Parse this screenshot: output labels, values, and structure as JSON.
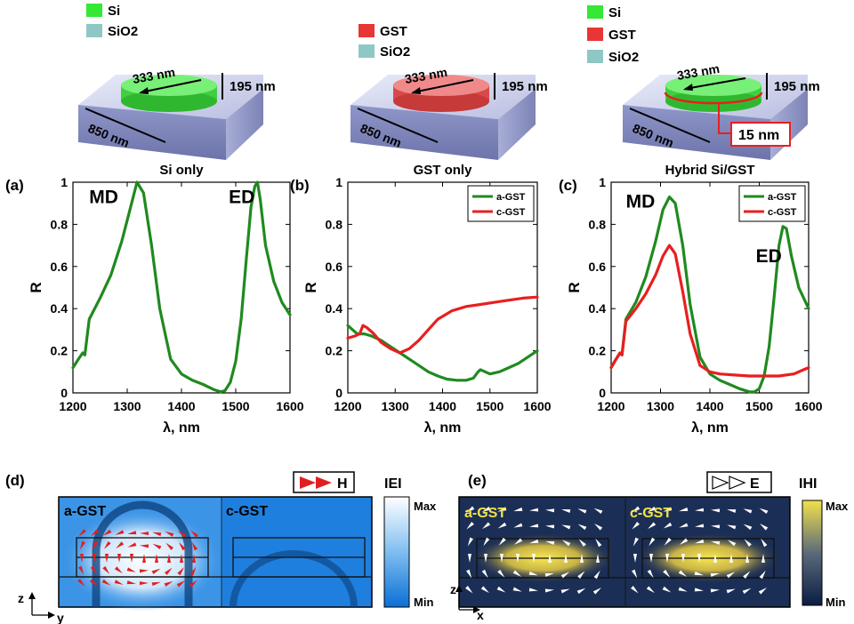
{
  "colors": {
    "si": "#35e835",
    "gst": "#e83535",
    "sio2": "#8fc7c7",
    "series_a": "#1f8a1f",
    "series_c": "#e81f1f",
    "ecolormap_min": "#0a6fd6",
    "ecolormap_max": "#ffffff",
    "hcolormap_min": "#0b1d44",
    "hcolormap_max": "#f2e14a"
  },
  "schematics": [
    {
      "legend": [
        "Si",
        "SiO2"
      ],
      "disk": "Si",
      "diameter_label": "333 nm",
      "height_label": "195 nm",
      "period_label": "850 nm"
    },
    {
      "legend": [
        "GST",
        "SiO2"
      ],
      "disk": "GST",
      "diameter_label": "333 nm",
      "height_label": "195 nm",
      "period_label": "850 nm"
    },
    {
      "legend": [
        "Si",
        "GST",
        "SiO2"
      ],
      "disk": "Hybrid",
      "diameter_label": "333 nm",
      "height_label": "195 nm",
      "period_label": "850 nm",
      "gst_thickness_label": "15 nm"
    }
  ],
  "chart_data": [
    {
      "type": "line",
      "panel": "(a)",
      "title": "Si only",
      "xlabel": "λ, nm",
      "ylabel": "R",
      "xlim": [
        1200,
        1600
      ],
      "ylim": [
        0,
        1
      ],
      "xticks": [
        1200,
        1300,
        1400,
        1500,
        1600
      ],
      "yticks": [
        0,
        0.2,
        0.4,
        0.6,
        0.8,
        1
      ],
      "annotations": [
        {
          "text": "MD",
          "x": 1230,
          "y": 0.9
        },
        {
          "text": "ED",
          "x": 1487,
          "y": 0.9
        }
      ],
      "legend": null,
      "series": [
        {
          "color_key": "series_a",
          "x": [
            1200,
            1210,
            1218,
            1222,
            1230,
            1250,
            1270,
            1290,
            1305,
            1318,
            1330,
            1345,
            1360,
            1380,
            1400,
            1420,
            1440,
            1460,
            1472,
            1480,
            1490,
            1500,
            1510,
            1520,
            1528,
            1535,
            1540,
            1545,
            1555,
            1570,
            1585,
            1600
          ],
          "y": [
            0.12,
            0.16,
            0.19,
            0.18,
            0.35,
            0.45,
            0.56,
            0.72,
            0.87,
            1.0,
            0.95,
            0.7,
            0.4,
            0.16,
            0.09,
            0.06,
            0.04,
            0.015,
            0.005,
            0.01,
            0.05,
            0.15,
            0.35,
            0.65,
            0.88,
            0.98,
            1.0,
            0.92,
            0.7,
            0.53,
            0.43,
            0.37
          ]
        }
      ]
    },
    {
      "type": "line",
      "panel": "(b)",
      "title": "GST only",
      "xlabel": "λ, nm",
      "ylabel": "R",
      "xlim": [
        1200,
        1600
      ],
      "ylim": [
        0,
        1
      ],
      "xticks": [
        1200,
        1300,
        1400,
        1500,
        1600
      ],
      "yticks": [
        0,
        0.2,
        0.4,
        0.6,
        0.8,
        1
      ],
      "annotations": [],
      "legend": {
        "position": "top-right"
      },
      "series": [
        {
          "name": "a-GST",
          "color_key": "series_a",
          "x": [
            1200,
            1210,
            1220,
            1235,
            1250,
            1270,
            1290,
            1310,
            1330,
            1350,
            1370,
            1390,
            1410,
            1430,
            1450,
            1465,
            1475,
            1480,
            1490,
            1500,
            1520,
            1540,
            1560,
            1580,
            1600
          ],
          "y": [
            0.32,
            0.3,
            0.28,
            0.28,
            0.27,
            0.25,
            0.22,
            0.19,
            0.16,
            0.13,
            0.1,
            0.08,
            0.065,
            0.06,
            0.06,
            0.07,
            0.1,
            0.11,
            0.1,
            0.09,
            0.1,
            0.12,
            0.14,
            0.17,
            0.2
          ]
        },
        {
          "name": "c-GST",
          "color_key": "series_c",
          "x": [
            1200,
            1215,
            1225,
            1232,
            1240,
            1255,
            1270,
            1290,
            1310,
            1330,
            1350,
            1370,
            1390,
            1420,
            1450,
            1480,
            1510,
            1540,
            1570,
            1600
          ],
          "y": [
            0.26,
            0.27,
            0.28,
            0.32,
            0.31,
            0.28,
            0.24,
            0.21,
            0.19,
            0.21,
            0.25,
            0.3,
            0.35,
            0.39,
            0.41,
            0.42,
            0.43,
            0.44,
            0.45,
            0.455
          ]
        }
      ]
    },
    {
      "type": "line",
      "panel": "(c)",
      "title": "Hybrid Si/GST",
      "xlabel": "λ, nm",
      "ylabel": "R",
      "xlim": [
        1200,
        1600
      ],
      "ylim": [
        0,
        1
      ],
      "xticks": [
        1200,
        1300,
        1400,
        1500,
        1600
      ],
      "yticks": [
        0,
        0.2,
        0.4,
        0.6,
        0.8,
        1
      ],
      "annotations": [
        {
          "text": "MD",
          "x": 1230,
          "y": 0.88
        },
        {
          "text": "ED",
          "x": 1493,
          "y": 0.62
        }
      ],
      "legend": {
        "position": "top-right"
      },
      "series": [
        {
          "name": "a-GST",
          "color_key": "series_a",
          "x": [
            1200,
            1210,
            1218,
            1222,
            1230,
            1250,
            1270,
            1290,
            1305,
            1318,
            1330,
            1345,
            1360,
            1380,
            1400,
            1420,
            1440,
            1460,
            1480,
            1490,
            1500,
            1510,
            1520,
            1530,
            1540,
            1548,
            1555,
            1565,
            1580,
            1600
          ],
          "y": [
            0.12,
            0.16,
            0.19,
            0.18,
            0.35,
            0.43,
            0.55,
            0.72,
            0.87,
            0.93,
            0.9,
            0.7,
            0.42,
            0.17,
            0.09,
            0.06,
            0.04,
            0.02,
            0.005,
            0.005,
            0.02,
            0.08,
            0.22,
            0.45,
            0.7,
            0.79,
            0.78,
            0.65,
            0.5,
            0.4
          ]
        },
        {
          "name": "c-GST",
          "color_key": "series_c",
          "x": [
            1200,
            1210,
            1218,
            1222,
            1230,
            1250,
            1270,
            1290,
            1305,
            1318,
            1330,
            1345,
            1360,
            1380,
            1400,
            1420,
            1450,
            1480,
            1510,
            1540,
            1570,
            1590,
            1600
          ],
          "y": [
            0.12,
            0.16,
            0.19,
            0.18,
            0.34,
            0.4,
            0.47,
            0.56,
            0.65,
            0.7,
            0.66,
            0.48,
            0.28,
            0.13,
            0.1,
            0.09,
            0.085,
            0.08,
            0.08,
            0.08,
            0.09,
            0.11,
            0.12
          ]
        }
      ]
    }
  ],
  "field_maps": [
    {
      "panel": "(d)",
      "legend_label": "H",
      "colorbar_title": "IEI",
      "colorbar_max": "Max",
      "colorbar_min": "Min",
      "left_label": "a-GST",
      "right_label": "c-GST",
      "axis_vertical": "z",
      "axis_horizontal": "y"
    },
    {
      "panel": "(e)",
      "legend_label": "E",
      "colorbar_title": "IHI",
      "colorbar_max": "Max",
      "colorbar_min": "Min",
      "left_label": "a-GST",
      "right_label": "c-GST",
      "axis_vertical": "z",
      "axis_horizontal": "x"
    }
  ]
}
